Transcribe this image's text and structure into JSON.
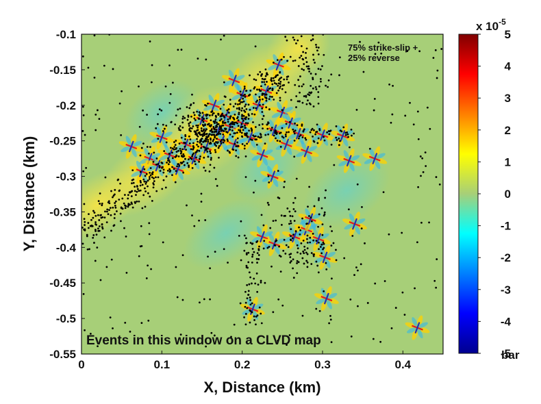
{
  "chart_data": {
    "type": "scatter",
    "xlabel": "X, Distance (km)",
    "ylabel": "Y, Distance (km)",
    "xlim": [
      0,
      0.45
    ],
    "ylim": [
      -0.55,
      -0.1
    ],
    "x_ticks": [
      "0",
      "0.1",
      "0.2",
      "0.3",
      "0.4"
    ],
    "y_ticks": [
      "-0.1",
      "-0.15",
      "-0.2",
      "-0.25",
      "-0.3",
      "-0.35",
      "-0.4",
      "-0.45",
      "-0.5",
      "-0.55"
    ],
    "annotation_lines": [
      "75% strike-slip +",
      "25% reverse"
    ],
    "window_label": "Events in this window on a CLVD map",
    "colorbar": {
      "range": [
        -5,
        5
      ],
      "ticks": [
        "5",
        "4",
        "3",
        "2",
        "1",
        "0",
        "-1",
        "-2",
        "-3",
        "-4",
        "-5"
      ],
      "exponent_label": "x 10",
      "exponent_power": "-5",
      "unit": "bar",
      "colormap": "jet"
    },
    "background_color": "#a7cf78",
    "point_color": "#000000",
    "event_centers": [
      {
        "x": 0.062,
        "y": -0.258
      },
      {
        "x": 0.075,
        "y": -0.293
      },
      {
        "x": 0.085,
        "y": -0.275
      },
      {
        "x": 0.095,
        "y": -0.285
      },
      {
        "x": 0.1,
        "y": -0.245
      },
      {
        "x": 0.11,
        "y": -0.27
      },
      {
        "x": 0.12,
        "y": -0.29
      },
      {
        "x": 0.13,
        "y": -0.255
      },
      {
        "x": 0.14,
        "y": -0.275
      },
      {
        "x": 0.15,
        "y": -0.22
      },
      {
        "x": 0.155,
        "y": -0.26
      },
      {
        "x": 0.165,
        "y": -0.2
      },
      {
        "x": 0.17,
        "y": -0.235
      },
      {
        "x": 0.175,
        "y": -0.25
      },
      {
        "x": 0.18,
        "y": -0.215
      },
      {
        "x": 0.185,
        "y": -0.23
      },
      {
        "x": 0.19,
        "y": -0.255
      },
      {
        "x": 0.2,
        "y": -0.185
      },
      {
        "x": 0.2,
        "y": -0.225
      },
      {
        "x": 0.21,
        "y": -0.245
      },
      {
        "x": 0.22,
        "y": -0.2
      },
      {
        "x": 0.225,
        "y": -0.27
      },
      {
        "x": 0.23,
        "y": -0.18
      },
      {
        "x": 0.24,
        "y": -0.235
      },
      {
        "x": 0.245,
        "y": -0.143
      },
      {
        "x": 0.25,
        "y": -0.21
      },
      {
        "x": 0.255,
        "y": -0.255
      },
      {
        "x": 0.26,
        "y": -0.225
      },
      {
        "x": 0.27,
        "y": -0.24
      },
      {
        "x": 0.28,
        "y": -0.265
      },
      {
        "x": 0.3,
        "y": -0.242
      },
      {
        "x": 0.325,
        "y": -0.243
      },
      {
        "x": 0.333,
        "y": -0.278
      },
      {
        "x": 0.365,
        "y": -0.275
      },
      {
        "x": 0.238,
        "y": -0.3
      },
      {
        "x": 0.19,
        "y": -0.165
      },
      {
        "x": 0.225,
        "y": -0.385
      },
      {
        "x": 0.24,
        "y": -0.395
      },
      {
        "x": 0.265,
        "y": -0.385
      },
      {
        "x": 0.28,
        "y": -0.375
      },
      {
        "x": 0.285,
        "y": -0.36
      },
      {
        "x": 0.295,
        "y": -0.388
      },
      {
        "x": 0.303,
        "y": -0.414
      },
      {
        "x": 0.34,
        "y": -0.367
      },
      {
        "x": 0.305,
        "y": -0.472
      },
      {
        "x": 0.213,
        "y": -0.487
      },
      {
        "x": 0.418,
        "y": -0.513
      }
    ]
  }
}
